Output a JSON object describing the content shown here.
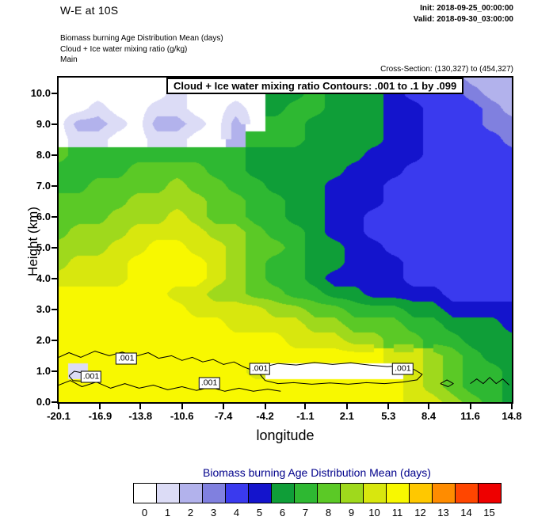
{
  "header": {
    "title": "W-E at 10S",
    "init": "Init: 2018-09-25_00:00:00",
    "valid": "Valid: 2018-09-30_03:00:00",
    "subtitle1": "Biomass burning Age Distribution Mean  (days)",
    "subtitle2": "Cloud + Ice water mixing ratio  (g/kg)",
    "subtitle3": "Main",
    "cross_section": "Cross-Section: (130,327) to (454,327)"
  },
  "axes": {
    "xlabel": "longitude",
    "ylabel": "Height (km)"
  },
  "chart_data": {
    "type": "heatmap",
    "title": "Cloud + Ice water mixing ratio Contours: .001 to .1 by .099",
    "xlabel": "longitude",
    "ylabel": "Height (km)",
    "units": "days",
    "x_range": [
      -20.1,
      14.8
    ],
    "y_range": [
      0,
      10.5
    ],
    "x_ticks": [
      -20.1,
      -16.9,
      -13.8,
      -10.6,
      -7.4,
      -4.2,
      -1.1,
      2.1,
      5.3,
      8.4,
      11.6,
      14.8
    ],
    "y_ticks": [
      0,
      1,
      2,
      3,
      4,
      5,
      6,
      7,
      8,
      9,
      10
    ],
    "colorbar": {
      "title": "Biomass burning Age Distribution Mean  (days)",
      "labels": [
        "0",
        "1",
        "2",
        "3",
        "4",
        "5",
        "6",
        "7",
        "8",
        "9",
        "10",
        "11",
        "12",
        "13",
        "14",
        "15"
      ],
      "colors": [
        "#ffffff",
        "#dcdcf6",
        "#b2b2ec",
        "#8080df",
        "#3a3aee",
        "#1414cc",
        "#0f9e38",
        "#2eb832",
        "#5bc926",
        "#9fd91c",
        "#d8e70e",
        "#f8f800",
        "#ffc800",
        "#ff8c00",
        "#ff4600",
        "#ee0000"
      ]
    },
    "grid": {
      "nx": 24,
      "ny": 22,
      "x_start": -20.1,
      "x_step": 1.5174,
      "y_start": 0,
      "y_step": 0.5,
      "values": [
        [
          11,
          11,
          11,
          11,
          11,
          11,
          11,
          11,
          11,
          11,
          11,
          11,
          11,
          11,
          11,
          11,
          11,
          11,
          10,
          10,
          9,
          8,
          7,
          6
        ],
        [
          11,
          11,
          11,
          11,
          11,
          11,
          11,
          11,
          11,
          11,
          11,
          11,
          11,
          11,
          11,
          11,
          11,
          11,
          10,
          9,
          8,
          7,
          7,
          6
        ],
        [
          11,
          1,
          11,
          11,
          11,
          11,
          11,
          11,
          11,
          11,
          10,
          0,
          0,
          0,
          0,
          0,
          0,
          0,
          10,
          9,
          8,
          7,
          7,
          6
        ],
        [
          11,
          11,
          11,
          11,
          11,
          11,
          11,
          11,
          11,
          11,
          11,
          11,
          11,
          11,
          11,
          11,
          11,
          10,
          10,
          9,
          8,
          7,
          6,
          6
        ],
        [
          11,
          11,
          11,
          11,
          11,
          11,
          11,
          11,
          11,
          11,
          11,
          11,
          10,
          10,
          10,
          9,
          9,
          8,
          8,
          7,
          7,
          6,
          6,
          6
        ],
        [
          11,
          11,
          11,
          11,
          11,
          11,
          11,
          11,
          11,
          10,
          10,
          10,
          10,
          9,
          9,
          8,
          8,
          8,
          7,
          7,
          6,
          6,
          6,
          5
        ],
        [
          11,
          11,
          11,
          11,
          11,
          11,
          11,
          10,
          10,
          10,
          10,
          9,
          9,
          8,
          8,
          7,
          7,
          7,
          6,
          6,
          5,
          5,
          5,
          5
        ],
        [
          11,
          11,
          11,
          11,
          11,
          11,
          10,
          10,
          9,
          9,
          8,
          8,
          7,
          7,
          6,
          6,
          5,
          5,
          5,
          5,
          4,
          4,
          4,
          4
        ],
        [
          10,
          10,
          10,
          10,
          11,
          11,
          11,
          11,
          10,
          9,
          8,
          7,
          7,
          6,
          5,
          5,
          5,
          5,
          4,
          4,
          4,
          4,
          4,
          4
        ],
        [
          9,
          10,
          10,
          10,
          11,
          11,
          11,
          11,
          10,
          9,
          8,
          7,
          7,
          6,
          6,
          5,
          5,
          5,
          4,
          4,
          4,
          4,
          4,
          4
        ],
        [
          9,
          9,
          9,
          10,
          10,
          11,
          11,
          10,
          10,
          9,
          8,
          8,
          7,
          6,
          6,
          5,
          5,
          4,
          4,
          4,
          4,
          4,
          4,
          4
        ],
        [
          8,
          9,
          9,
          9,
          10,
          10,
          10,
          10,
          9,
          9,
          8,
          7,
          7,
          6,
          5,
          5,
          4,
          4,
          4,
          4,
          4,
          4,
          4,
          4
        ],
        [
          8,
          8,
          8,
          9,
          9,
          9,
          10,
          9,
          8,
          8,
          7,
          7,
          6,
          6,
          5,
          5,
          4,
          4,
          4,
          4,
          4,
          4,
          4,
          4
        ],
        [
          8,
          8,
          8,
          8,
          9,
          9,
          9,
          9,
          8,
          8,
          7,
          7,
          6,
          6,
          5,
          5,
          5,
          4,
          4,
          4,
          4,
          4,
          4,
          4
        ],
        [
          7,
          7,
          8,
          8,
          8,
          8,
          9,
          8,
          8,
          7,
          7,
          6,
          6,
          6,
          5,
          5,
          5,
          4,
          4,
          4,
          4,
          4,
          4,
          4
        ],
        [
          7,
          7,
          7,
          7,
          8,
          8,
          8,
          8,
          7,
          7,
          6,
          6,
          6,
          6,
          6,
          5,
          5,
          5,
          4,
          4,
          4,
          4,
          4,
          4
        ],
        [
          8,
          7,
          7,
          7,
          7,
          7,
          7,
          7,
          7,
          7,
          6,
          6,
          6,
          6,
          6,
          6,
          5,
          5,
          5,
          4,
          4,
          4,
          4,
          4
        ],
        [
          0,
          1,
          1,
          0,
          0,
          1,
          1,
          0,
          0,
          2,
          7,
          7,
          7,
          6,
          6,
          6,
          6,
          5,
          5,
          4,
          4,
          4,
          4,
          3
        ],
        [
          0,
          2,
          2,
          1,
          0,
          2,
          2,
          1,
          0,
          2,
          0,
          7,
          7,
          6,
          6,
          6,
          6,
          5,
          5,
          4,
          4,
          4,
          3,
          3
        ],
        [
          0,
          0,
          1,
          0,
          0,
          1,
          1,
          0,
          0,
          1,
          0,
          6,
          7,
          7,
          6,
          6,
          6,
          5,
          5,
          4,
          4,
          4,
          3,
          2
        ],
        [
          0,
          0,
          0,
          0,
          0,
          0,
          1,
          0,
          0,
          0,
          0,
          6,
          6,
          7,
          6,
          6,
          6,
          5,
          4,
          4,
          4,
          3,
          2,
          2
        ],
        [
          0,
          0,
          0,
          0,
          0,
          0,
          0,
          0,
          0,
          0,
          1,
          6,
          6,
          6,
          6,
          6,
          5,
          5,
          4,
          4,
          3,
          2,
          2,
          2
        ]
      ]
    },
    "cloud_contours": {
      "level": 0.001,
      "label_text": ".001",
      "labels": [
        {
          "lon": -14.9,
          "km": 1.42
        },
        {
          "lon": -17.6,
          "km": 0.82
        },
        {
          "lon": -8.5,
          "km": 0.62
        },
        {
          "lon": -4.6,
          "km": 1.08
        },
        {
          "lon": 6.4,
          "km": 1.08
        }
      ],
      "polylines": [
        [
          [
            -20.1,
            1.45
          ],
          [
            -19.3,
            1.6
          ],
          [
            -18.4,
            1.45
          ],
          [
            -17.3,
            1.65
          ],
          [
            -16.2,
            1.5
          ],
          [
            -15.2,
            1.62
          ],
          [
            -14.2,
            1.48
          ],
          [
            -13.2,
            1.6
          ],
          [
            -12.4,
            1.42
          ],
          [
            -11.4,
            1.5
          ],
          [
            -10.6,
            1.35
          ],
          [
            -9.8,
            1.45
          ],
          [
            -9.0,
            1.3
          ],
          [
            -8.2,
            1.38
          ],
          [
            -7.4,
            1.22
          ],
          [
            -6.6,
            1.3
          ],
          [
            -5.9,
            1.15
          ],
          [
            -5.3,
            1.05
          ],
          [
            -4.9,
            0.9
          ]
        ],
        [
          [
            -20.1,
            0.55
          ],
          [
            -19.2,
            0.7
          ],
          [
            -18.3,
            0.5
          ],
          [
            -17.2,
            0.65
          ],
          [
            -16.1,
            0.45
          ],
          [
            -15.0,
            0.6
          ],
          [
            -13.9,
            0.45
          ],
          [
            -12.8,
            0.55
          ],
          [
            -11.7,
            0.4
          ],
          [
            -10.6,
            0.5
          ],
          [
            -9.5,
            0.38
          ],
          [
            -8.4,
            0.48
          ],
          [
            -7.3,
            0.35
          ],
          [
            -6.2,
            0.45
          ],
          [
            -5.1,
            0.35
          ],
          [
            -4.0,
            0.42
          ],
          [
            -3.0,
            0.35
          ]
        ],
        [
          [
            -4.7,
            0.95
          ],
          [
            -4.2,
            1.15
          ],
          [
            -3.2,
            1.25
          ],
          [
            -1.8,
            1.2
          ],
          [
            -0.4,
            1.28
          ],
          [
            1.0,
            1.22
          ],
          [
            2.4,
            1.27
          ],
          [
            3.8,
            1.2
          ],
          [
            5.2,
            1.15
          ],
          [
            6.4,
            1.18
          ],
          [
            7.3,
            1.05
          ],
          [
            7.9,
            0.9
          ],
          [
            7.5,
            0.72
          ],
          [
            6.4,
            0.65
          ],
          [
            5.0,
            0.6
          ],
          [
            3.6,
            0.63
          ],
          [
            2.2,
            0.58
          ],
          [
            0.8,
            0.62
          ],
          [
            -0.6,
            0.58
          ],
          [
            -2.0,
            0.63
          ],
          [
            -3.2,
            0.6
          ],
          [
            -4.2,
            0.7
          ],
          [
            -4.7,
            0.95
          ]
        ],
        [
          [
            -19.3,
            0.85
          ],
          [
            -18.9,
            1.0
          ],
          [
            -18.3,
            0.95
          ],
          [
            -18.0,
            0.8
          ],
          [
            -18.4,
            0.68
          ],
          [
            -19.0,
            0.7
          ],
          [
            -19.3,
            0.85
          ]
        ],
        [
          [
            -9.3,
            0.65
          ],
          [
            -8.8,
            0.78
          ],
          [
            -8.1,
            0.75
          ],
          [
            -7.7,
            0.62
          ],
          [
            -8.2,
            0.5
          ],
          [
            -8.9,
            0.52
          ],
          [
            -9.3,
            0.65
          ]
        ],
        [
          [
            11.6,
            0.6
          ],
          [
            12.1,
            0.75
          ],
          [
            12.6,
            0.6
          ],
          [
            13.1,
            0.8
          ],
          [
            13.6,
            0.6
          ],
          [
            14.1,
            0.75
          ],
          [
            14.6,
            0.55
          ]
        ],
        [
          [
            9.3,
            0.6
          ],
          [
            9.8,
            0.72
          ],
          [
            10.3,
            0.6
          ],
          [
            9.9,
            0.5
          ],
          [
            9.3,
            0.6
          ]
        ]
      ]
    }
  }
}
